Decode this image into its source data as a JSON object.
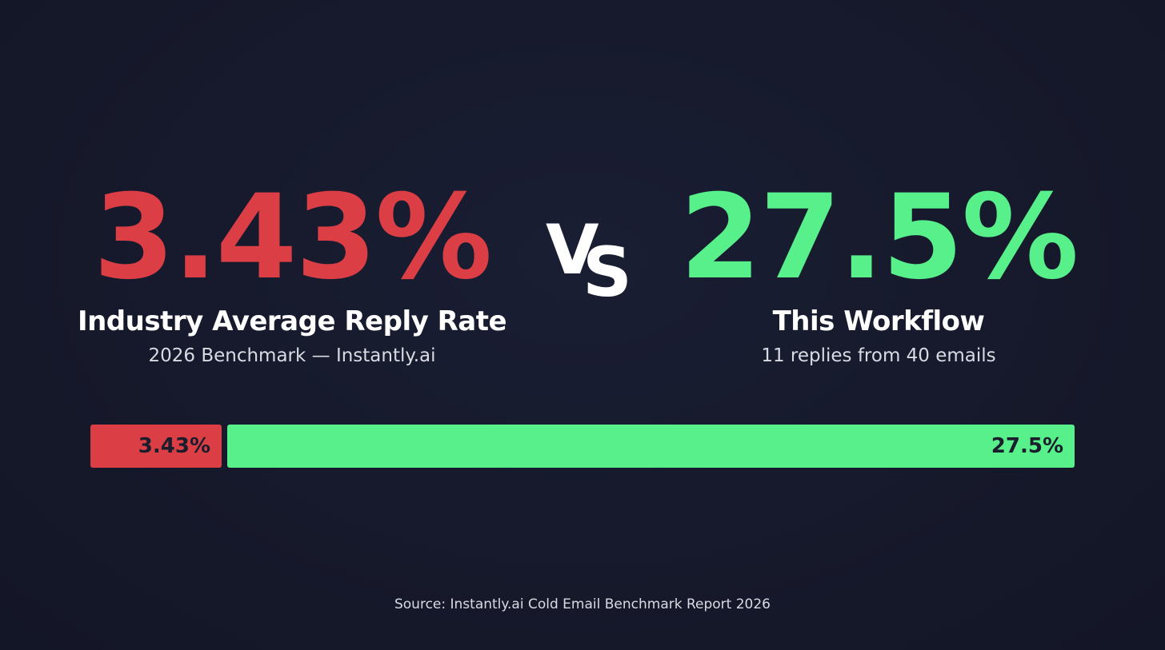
{
  "colors": {
    "industry": "#db3f45",
    "workflow": "#57f08a",
    "background": "#161a2d"
  },
  "industry": {
    "value": "3.43%",
    "label": "Industry Average Reply Rate",
    "sub": "2026 Benchmark — Instantly.ai"
  },
  "vs": {
    "v": "V",
    "s": "S"
  },
  "workflow": {
    "value": "27.5%",
    "label": "This Workflow",
    "sub": "11 replies from 40 emails"
  },
  "source": "Source: Instantly.ai Cold Email Benchmark Report 2026",
  "chart_data": {
    "type": "bar",
    "orientation": "horizontal-stacked",
    "categories": [
      "3.43%",
      "27.5%"
    ],
    "values": [
      3.43,
      27.5
    ],
    "title": "",
    "xlabel": "",
    "ylabel": "",
    "grid": false
  }
}
